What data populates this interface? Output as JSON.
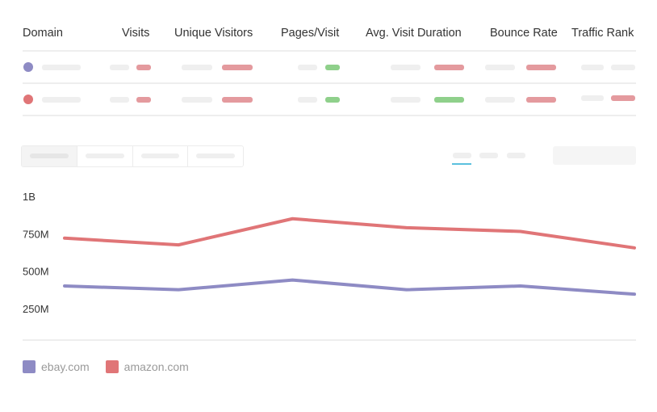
{
  "table": {
    "headers": [
      "Domain",
      "Visits",
      "Unique Visitors",
      "Pages/Visit",
      "Avg. Visit Duration",
      "Bounce Rate",
      "Traffic Rank"
    ],
    "rows": [
      {
        "domain": "ebay.com",
        "color": "#8e8bc4"
      },
      {
        "domain": "amazon.com",
        "color": "#e07577"
      }
    ]
  },
  "chart_data": {
    "type": "line",
    "x": [
      "1",
      "2",
      "3",
      "4",
      "5",
      "6"
    ],
    "yticks": [
      "1B",
      "750M",
      "500M",
      "250M"
    ],
    "ylim": [
      0,
      1000000000
    ],
    "series": [
      {
        "name": "ebay.com",
        "color": "#8e8bc4",
        "values": [
          400000000,
          375000000,
          440000000,
          375000000,
          400000000,
          345000000
        ]
      },
      {
        "name": "amazon.com",
        "color": "#e07577",
        "values": [
          720000000,
          675000000,
          850000000,
          790000000,
          765000000,
          655000000
        ]
      }
    ],
    "legend_position": "bottom-left",
    "grid": false
  }
}
